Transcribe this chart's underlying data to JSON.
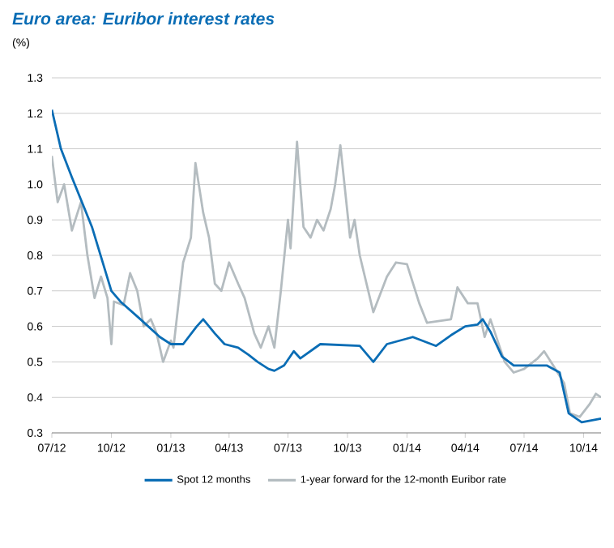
{
  "chart_data": {
    "type": "line",
    "title": "Euro area: Euribor interest rates",
    "ylabel": "(%)",
    "ylim": [
      0.3,
      1.3
    ],
    "yticks": [
      {
        "value": 0.3,
        "label": "0.3"
      },
      {
        "value": 0.4,
        "label": "0.4"
      },
      {
        "value": 0.5,
        "label": "0.5"
      },
      {
        "value": 0.6,
        "label": "0.6"
      },
      {
        "value": 0.7,
        "label": "0.7"
      },
      {
        "value": 0.8,
        "label": "0.8"
      },
      {
        "value": 0.9,
        "label": "0.9"
      },
      {
        "value": 1.0,
        "label": "1.0"
      },
      {
        "value": 1.1,
        "label": "1.1"
      },
      {
        "value": 1.2,
        "label": "1.2"
      },
      {
        "value": 1.3,
        "label": "1.3"
      }
    ],
    "xlim": [
      "2012-07-01",
      "2014-10-28"
    ],
    "xticks": [
      {
        "value": "2012-07-01",
        "label": "07/12"
      },
      {
        "value": "2012-10-01",
        "label": "10/12"
      },
      {
        "value": "2013-01-01",
        "label": "01/13"
      },
      {
        "value": "2013-04-01",
        "label": "04/13"
      },
      {
        "value": "2013-07-01",
        "label": "07/13"
      },
      {
        "value": "2013-10-01",
        "label": "10/13"
      },
      {
        "value": "2014-01-01",
        "label": "01/14"
      },
      {
        "value": "2014-04-01",
        "label": "04/14"
      },
      {
        "value": "2014-07-01",
        "label": "07/14"
      },
      {
        "value": "2014-10-01",
        "label": "10/14"
      }
    ],
    "grid": "y",
    "legend": "bottom",
    "marker": "none",
    "line_style": "solid",
    "series": [
      {
        "name": "Spot 12 months",
        "color": "#0a6db5",
        "x": [
          "2012-07-01",
          "2012-07-15",
          "2012-08-01",
          "2012-09-01",
          "2012-10-01",
          "2012-10-15",
          "2012-11-15",
          "2012-12-15",
          "2013-01-01",
          "2013-01-20",
          "2013-02-10",
          "2013-02-20",
          "2013-03-10",
          "2013-03-25",
          "2013-04-15",
          "2013-05-01",
          "2013-05-15",
          "2013-06-01",
          "2013-06-10",
          "2013-06-25",
          "2013-07-10",
          "2013-07-20",
          "2013-08-20",
          "2013-10-20",
          "2013-11-10",
          "2013-12-01",
          "2014-01-10",
          "2014-02-15",
          "2014-03-10",
          "2014-04-01",
          "2014-04-20",
          "2014-04-28",
          "2014-05-10",
          "2014-05-28",
          "2014-06-15",
          "2014-08-05",
          "2014-08-25",
          "2014-09-08",
          "2014-09-28",
          "2014-10-28"
        ],
        "values": [
          1.21,
          1.1,
          1.02,
          0.88,
          0.7,
          0.67,
          0.62,
          0.57,
          0.55,
          0.55,
          0.6,
          0.62,
          0.58,
          0.55,
          0.54,
          0.52,
          0.5,
          0.48,
          0.475,
          0.49,
          0.53,
          0.51,
          0.55,
          0.545,
          0.5,
          0.55,
          0.57,
          0.545,
          0.575,
          0.6,
          0.605,
          0.62,
          0.585,
          0.515,
          0.49,
          0.49,
          0.47,
          0.355,
          0.33,
          0.34
        ]
      },
      {
        "name": "1-year forward for the 12-month Euribor rate",
        "color": "#b4bcc0",
        "x": [
          "2012-07-01",
          "2012-07-10",
          "2012-07-20",
          "2012-08-01",
          "2012-08-15",
          "2012-08-25",
          "2012-09-05",
          "2012-09-15",
          "2012-09-25",
          "2012-10-01",
          "2012-10-05",
          "2012-10-20",
          "2012-10-30",
          "2012-11-10",
          "2012-11-20",
          "2012-12-01",
          "2012-12-10",
          "2012-12-20",
          "2013-01-01",
          "2013-01-05",
          "2013-01-20",
          "2013-02-01",
          "2013-02-08",
          "2013-02-20",
          "2013-03-01",
          "2013-03-10",
          "2013-03-20",
          "2013-04-01",
          "2013-04-15",
          "2013-04-25",
          "2013-05-10",
          "2013-05-20",
          "2013-06-01",
          "2013-06-10",
          "2013-06-20",
          "2013-07-01",
          "2013-07-05",
          "2013-07-15",
          "2013-07-25",
          "2013-08-05",
          "2013-08-15",
          "2013-08-25",
          "2013-09-05",
          "2013-09-12",
          "2013-09-20",
          "2013-10-05",
          "2013-10-12",
          "2013-10-20",
          "2013-11-10",
          "2013-12-01",
          "2013-12-15",
          "2014-01-01",
          "2014-01-20",
          "2014-02-01",
          "2014-03-10",
          "2014-03-20",
          "2014-04-05",
          "2014-04-20",
          "2014-05-01",
          "2014-05-10",
          "2014-06-01",
          "2014-06-15",
          "2014-07-01",
          "2014-07-22",
          "2014-08-01",
          "2014-08-15",
          "2014-09-01",
          "2014-09-10",
          "2014-09-25",
          "2014-10-10",
          "2014-10-20",
          "2014-10-28"
        ],
        "values": [
          1.08,
          0.95,
          1.0,
          0.87,
          0.95,
          0.8,
          0.68,
          0.74,
          0.68,
          0.55,
          0.67,
          0.66,
          0.75,
          0.7,
          0.6,
          0.62,
          0.58,
          0.5,
          0.56,
          0.54,
          0.78,
          0.85,
          1.06,
          0.92,
          0.85,
          0.72,
          0.7,
          0.78,
          0.72,
          0.68,
          0.58,
          0.54,
          0.6,
          0.54,
          0.7,
          0.9,
          0.82,
          1.12,
          0.88,
          0.85,
          0.9,
          0.87,
          0.93,
          1.0,
          1.11,
          0.85,
          0.9,
          0.8,
          0.64,
          0.74,
          0.78,
          0.775,
          0.665,
          0.61,
          0.62,
          0.71,
          0.665,
          0.665,
          0.57,
          0.62,
          0.5,
          0.47,
          0.48,
          0.51,
          0.53,
          0.49,
          0.44,
          0.355,
          0.345,
          0.38,
          0.41,
          0.4
        ]
      }
    ]
  }
}
